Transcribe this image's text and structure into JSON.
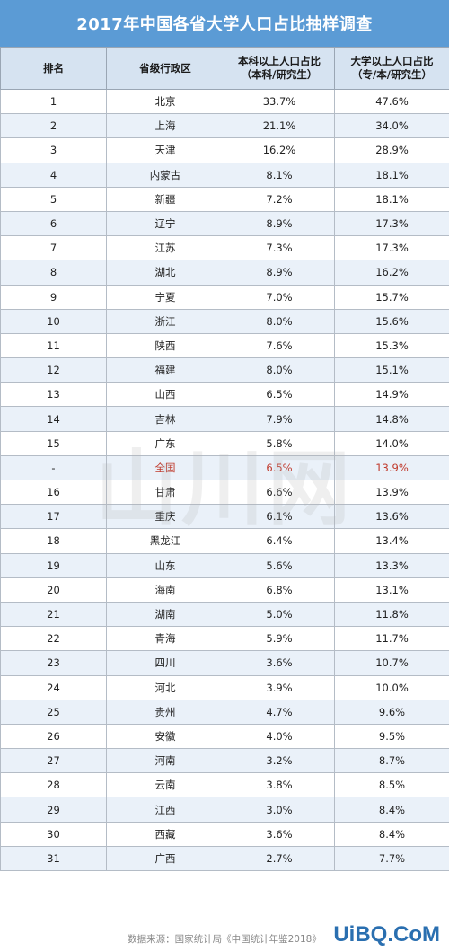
{
  "title": "2017年中国各省大学人口占比抽样调查",
  "headers": {
    "rank": "排名",
    "province": "省级行政区",
    "bachelor_line1": "本科以上人口占比",
    "bachelor_line2": "（本科/研究生）",
    "college_line1": "大学以上人口占比",
    "college_line2": "（专/本/研究生）"
  },
  "rows": [
    {
      "rank": "1",
      "province": "北京",
      "bachelor": "33.7%",
      "college": "47.6%"
    },
    {
      "rank": "2",
      "province": "上海",
      "bachelor": "21.1%",
      "college": "34.0%"
    },
    {
      "rank": "3",
      "province": "天津",
      "bachelor": "16.2%",
      "college": "28.9%"
    },
    {
      "rank": "4",
      "province": "内蒙古",
      "bachelor": "8.1%",
      "college": "18.1%"
    },
    {
      "rank": "5",
      "province": "新疆",
      "bachelor": "7.2%",
      "college": "18.1%"
    },
    {
      "rank": "6",
      "province": "辽宁",
      "bachelor": "8.9%",
      "college": "17.3%"
    },
    {
      "rank": "7",
      "province": "江苏",
      "bachelor": "7.3%",
      "college": "17.3%"
    },
    {
      "rank": "8",
      "province": "湖北",
      "bachelor": "8.9%",
      "college": "16.2%"
    },
    {
      "rank": "9",
      "province": "宁夏",
      "bachelor": "7.0%",
      "college": "15.7%"
    },
    {
      "rank": "10",
      "province": "浙江",
      "bachelor": "8.0%",
      "college": "15.6%"
    },
    {
      "rank": "11",
      "province": "陕西",
      "bachelor": "7.6%",
      "college": "15.3%"
    },
    {
      "rank": "12",
      "province": "福建",
      "bachelor": "8.0%",
      "college": "15.1%"
    },
    {
      "rank": "13",
      "province": "山西",
      "bachelor": "6.5%",
      "college": "14.9%"
    },
    {
      "rank": "14",
      "province": "吉林",
      "bachelor": "7.9%",
      "college": "14.8%"
    },
    {
      "rank": "15",
      "province": "广东",
      "bachelor": "5.8%",
      "college": "14.0%"
    },
    {
      "rank": "-",
      "province": "全国",
      "bachelor": "6.5%",
      "college": "13.9%",
      "highlight": true
    },
    {
      "rank": "16",
      "province": "甘肃",
      "bachelor": "6.6%",
      "college": "13.9%"
    },
    {
      "rank": "17",
      "province": "重庆",
      "bachelor": "6.1%",
      "college": "13.6%"
    },
    {
      "rank": "18",
      "province": "黑龙江",
      "bachelor": "6.4%",
      "college": "13.4%"
    },
    {
      "rank": "19",
      "province": "山东",
      "bachelor": "5.6%",
      "college": "13.3%"
    },
    {
      "rank": "20",
      "province": "海南",
      "bachelor": "6.8%",
      "college": "13.1%"
    },
    {
      "rank": "21",
      "province": "湖南",
      "bachelor": "5.0%",
      "college": "11.8%"
    },
    {
      "rank": "22",
      "province": "青海",
      "bachelor": "5.9%",
      "college": "11.7%"
    },
    {
      "rank": "23",
      "province": "四川",
      "bachelor": "3.6%",
      "college": "10.7%"
    },
    {
      "rank": "24",
      "province": "河北",
      "bachelor": "3.9%",
      "college": "10.0%"
    },
    {
      "rank": "25",
      "province": "贵州",
      "bachelor": "4.7%",
      "college": "9.6%"
    },
    {
      "rank": "26",
      "province": "安徽",
      "bachelor": "4.0%",
      "college": "9.5%"
    },
    {
      "rank": "27",
      "province": "河南",
      "bachelor": "3.2%",
      "college": "8.7%"
    },
    {
      "rank": "28",
      "province": "云南",
      "bachelor": "3.8%",
      "college": "8.5%"
    },
    {
      "rank": "29",
      "province": "江西",
      "bachelor": "3.0%",
      "college": "8.4%"
    },
    {
      "rank": "30",
      "province": "西藏",
      "bachelor": "3.6%",
      "college": "8.4%"
    },
    {
      "rank": "31",
      "province": "广西",
      "bachelor": "2.7%",
      "college": "7.7%"
    }
  ],
  "footer": "数据来源：国家统计局《中国统计年鉴2018》",
  "watermark": "山川网",
  "site_logo": "UiBQ.CoM",
  "colors": {
    "title_bg": "#5b9bd5",
    "header_bg": "#d6e3f1",
    "stripe": "#eaf1f9",
    "highlight_text": "#c0392b"
  }
}
